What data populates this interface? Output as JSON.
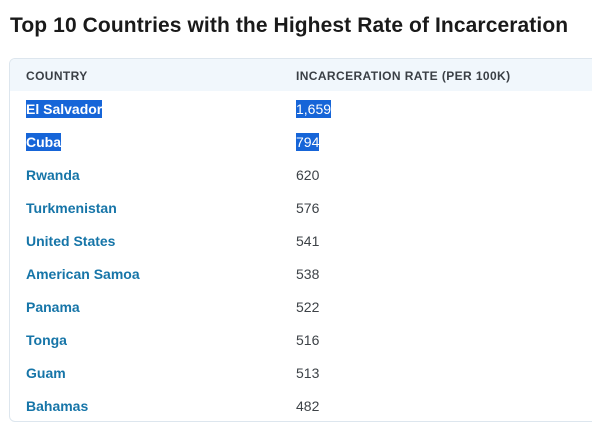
{
  "page": {
    "title": "Top 10 Countries with the Highest Rate of Incarceration"
  },
  "table": {
    "columns": {
      "country": "COUNTRY",
      "rate": "INCARCERATION RATE (PER 100K)"
    },
    "rows": [
      {
        "country": "El Salvador",
        "rate": "1,659",
        "selected": true
      },
      {
        "country": "Cuba",
        "rate": "794",
        "selected": true
      },
      {
        "country": "Rwanda",
        "rate": "620",
        "selected": false
      },
      {
        "country": "Turkmenistan",
        "rate": "576",
        "selected": false
      },
      {
        "country": "United States",
        "rate": "541",
        "selected": false
      },
      {
        "country": "American Samoa",
        "rate": "538",
        "selected": false
      },
      {
        "country": "Panama",
        "rate": "522",
        "selected": false
      },
      {
        "country": "Tonga",
        "rate": "516",
        "selected": false
      },
      {
        "country": "Guam",
        "rate": "513",
        "selected": false
      },
      {
        "country": "Bahamas",
        "rate": "482",
        "selected": false
      }
    ]
  },
  "colors": {
    "link": "#1675a8",
    "header_bg": "#f1f7fc",
    "selection": "#1665d8"
  }
}
